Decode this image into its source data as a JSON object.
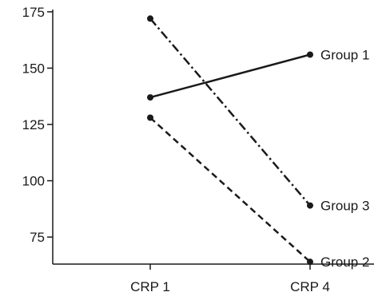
{
  "chart_data": {
    "type": "line",
    "categories": [
      "CRP 1",
      "CRP 4"
    ],
    "series": [
      {
        "name": "Group 1",
        "values": [
          137,
          156
        ],
        "line_style": "solid"
      },
      {
        "name": "Group 3",
        "values": [
          172,
          89
        ],
        "line_style": "dash-dot"
      },
      {
        "name": "Group 2",
        "values": [
          128,
          64
        ],
        "line_style": "dashed"
      }
    ],
    "title": "",
    "xlabel": "",
    "ylabel": "",
    "ylim": [
      63,
      176
    ],
    "yticks": [
      75,
      100,
      125,
      150,
      175
    ],
    "grid": false,
    "legend": "none; series names printed at right end of each line",
    "colors": {
      "ink": "#1a1a1a",
      "background": "#ffffff"
    }
  }
}
